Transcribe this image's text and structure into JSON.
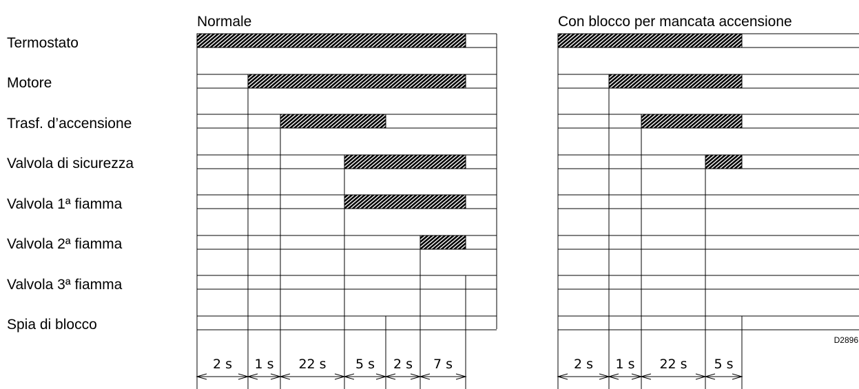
{
  "rows": [
    "Termostato",
    "Motore",
    "Trasf. d’accensione",
    "Valvola di sicurezza",
    "Valvola 1ª fiamma",
    "Valvola 2ª fiamma",
    "Valvola 3ª fiamma",
    "Spia di blocco"
  ],
  "panels": [
    {
      "title": "Normale",
      "durations": [
        "2 s",
        "1 s",
        "22 s",
        "5 s",
        "2 s",
        "7 s"
      ],
      "on": [
        [
          0,
          6
        ],
        [
          1,
          6
        ],
        [
          2,
          4
        ],
        [
          3,
          6
        ],
        [
          3,
          6
        ],
        [
          5,
          6
        ],
        [
          6,
          6
        ],
        null
      ]
    },
    {
      "title": "Con blocco per mancata accensione",
      "durations": [
        "2 s",
        "1 s",
        "22 s",
        "5 s"
      ],
      "on": [
        [
          0,
          4
        ],
        [
          1,
          4
        ],
        [
          2,
          4
        ],
        [
          3,
          4
        ],
        null,
        null,
        null,
        [
          4,
          4
        ]
      ]
    }
  ],
  "drawing_code": "D2896"
}
